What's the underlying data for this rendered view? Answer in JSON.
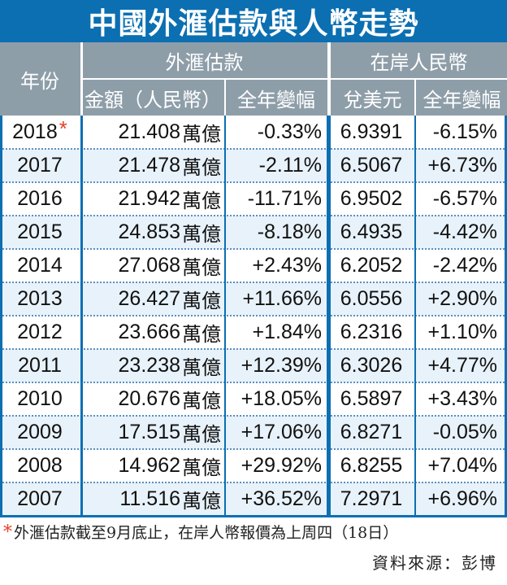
{
  "title": "中國外滙估款與人幣走勢",
  "header": {
    "year": "年份",
    "fx_group": "外滙估款",
    "fx_amount": "金額（人民幣）",
    "fx_change": "全年變幅",
    "rmb_group": "在岸人民幣",
    "rmb_rate": "兌美元",
    "rmb_change": "全年變幅"
  },
  "rows": [
    {
      "year": "2018",
      "star": "*",
      "amount": "21.408",
      "unit": "萬億",
      "fx_change": "-0.33%",
      "rate": "6.9391",
      "rmb_change": "-6.15%"
    },
    {
      "year": "2017",
      "star": "",
      "amount": "21.478",
      "unit": "萬億",
      "fx_change": "-2.11%",
      "rate": "6.5067",
      "rmb_change": "+6.73%"
    },
    {
      "year": "2016",
      "star": "",
      "amount": "21.942",
      "unit": "萬億",
      "fx_change": "-11.71%",
      "rate": "6.9502",
      "rmb_change": "-6.57%"
    },
    {
      "year": "2015",
      "star": "",
      "amount": "24.853",
      "unit": "萬億",
      "fx_change": "-8.18%",
      "rate": "6.4935",
      "rmb_change": "-4.42%"
    },
    {
      "year": "2014",
      "star": "",
      "amount": "27.068",
      "unit": "萬億",
      "fx_change": "+2.43%",
      "rate": "6.2052",
      "rmb_change": "-2.42%"
    },
    {
      "year": "2013",
      "star": "",
      "amount": "26.427",
      "unit": "萬億",
      "fx_change": "+11.66%",
      "rate": "6.0556",
      "rmb_change": "+2.90%"
    },
    {
      "year": "2012",
      "star": "",
      "amount": "23.666",
      "unit": "萬億",
      "fx_change": "+1.84%",
      "rate": "6.2316",
      "rmb_change": "+1.10%"
    },
    {
      "year": "2011",
      "star": "",
      "amount": "23.238",
      "unit": "萬億",
      "fx_change": "+12.39%",
      "rate": "6.3026",
      "rmb_change": "+4.77%"
    },
    {
      "year": "2010",
      "star": "",
      "amount": "20.676",
      "unit": "萬億",
      "fx_change": "+18.05%",
      "rate": "6.5897",
      "rmb_change": "+3.43%"
    },
    {
      "year": "2009",
      "star": "",
      "amount": "17.515",
      "unit": "萬億",
      "fx_change": "+17.06%",
      "rate": "6.8271",
      "rmb_change": "-0.05%"
    },
    {
      "year": "2008",
      "star": "",
      "amount": "14.962",
      "unit": "萬億",
      "fx_change": "+29.92%",
      "rate": "6.8255",
      "rmb_change": "+7.04%"
    },
    {
      "year": "2007",
      "star": "",
      "amount": "11.516",
      "unit": "萬億",
      "fx_change": "+36.52%",
      "rate": "7.2971",
      "rmb_change": "+6.96%"
    }
  ],
  "footnote": {
    "star": "*",
    "text": "外滙估款截至9月底止，在岸人幣報價為上周四（18日）"
  },
  "source": "資料來源：彭博",
  "colors": {
    "title_bg": "#0b6fb2",
    "header_bg": "#8e9ea9",
    "row_alt": "#e8f2fa",
    "accent_star": "#e8402a"
  }
}
